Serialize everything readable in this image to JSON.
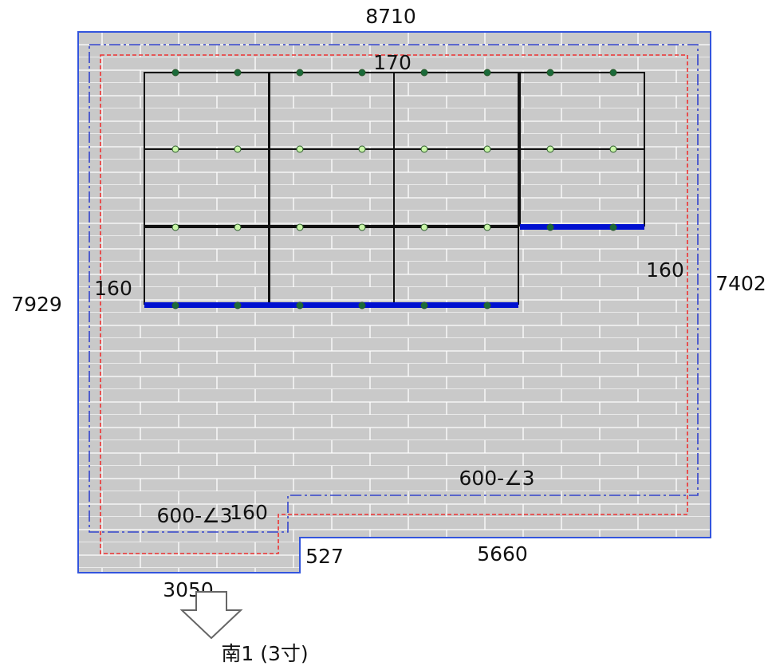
{
  "colors": {
    "roof_fill": "#c9c9c9",
    "tile_line": "#ffffff",
    "outline": "#3355dd",
    "dash_dot": "#3344cc",
    "dashed_red": "#ee3333",
    "panel_border": "#111111",
    "rail_blue": "#0010d0",
    "mount_dark": "#1a6a3a",
    "mount_light": "#c9f5a8"
  },
  "labels": {
    "top_width": "8710",
    "left_height": "7929",
    "right_height": "7402",
    "top_margin": "170",
    "left_margin": "160",
    "right_margin": "160",
    "bottom_margin": "160",
    "eave_right": "600-∠3",
    "eave_left": "600-∠3",
    "step_depth": "527",
    "bottom_right_width": "5660",
    "bottom_left_width": "3050",
    "direction": "南1 (3寸)"
  },
  "icons": {
    "direction": "south-arrow-icon"
  }
}
